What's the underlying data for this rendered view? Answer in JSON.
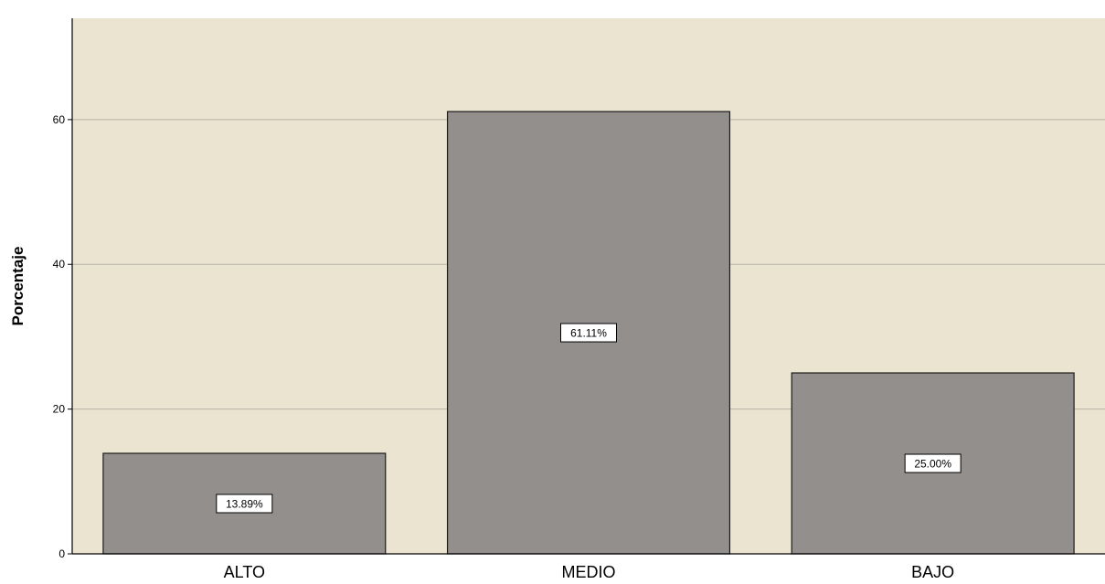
{
  "chart_data": {
    "type": "bar",
    "title": "",
    "xlabel": "",
    "ylabel": "Porcentaje",
    "categories": [
      "ALTO",
      "MEDIO",
      "BAJO"
    ],
    "values": [
      13.89,
      61.11,
      25.0
    ],
    "data_labels": [
      "13.89%",
      "61.11%",
      "25.00%"
    ],
    "ylim": [
      0,
      74
    ],
    "yticks": [
      0,
      20,
      40,
      60
    ],
    "ytick_labels": [
      "0",
      "20",
      "40",
      "60"
    ],
    "grid": true,
    "legend": "none",
    "colors": {
      "plot_background": "#ebe4d1",
      "bar_fill": "#938f8d",
      "bar_stroke": "#1a1a1a",
      "gridline": "#b7b2a4",
      "axis": "#000000",
      "label_box": "#ffffff"
    }
  }
}
